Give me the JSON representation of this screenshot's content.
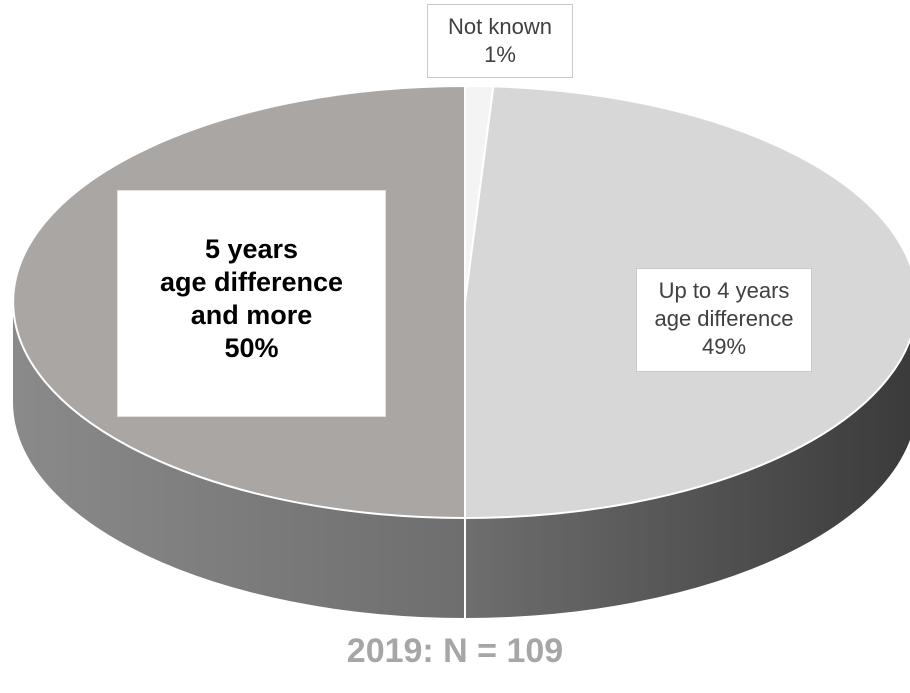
{
  "chart_data": {
    "type": "pie",
    "style": "3d",
    "slices": [
      {
        "label_lines": [
          "Not known"
        ],
        "value": 1,
        "value_label": "1%",
        "color": "#f4f4f4",
        "side_color": "#e0e0e0"
      },
      {
        "label_lines": [
          "Up to 4 years",
          "age difference"
        ],
        "value": 49,
        "value_label": "49%",
        "color": "#d7d7d7",
        "side_color": "#5f5f5f"
      },
      {
        "label_lines": [
          "5 years",
          "age difference",
          "and more"
        ],
        "value": 50,
        "value_label": "50%",
        "color": "#a9a6a4",
        "side_color": "#6f6f6f"
      }
    ],
    "caption": "2019: N = 109"
  }
}
